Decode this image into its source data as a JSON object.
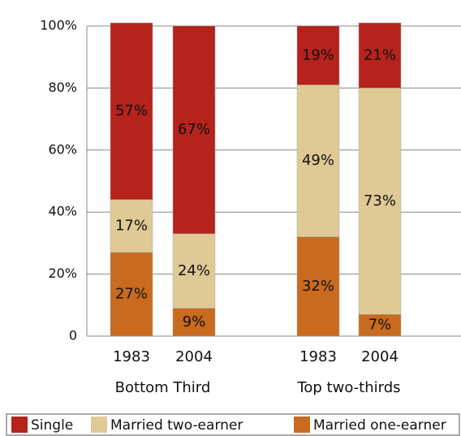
{
  "chart_data": {
    "type": "stacked_bar",
    "categories": [
      "1983",
      "2004",
      "1983",
      "2004"
    ],
    "groups": [
      "Bottom Third",
      "Top two-thirds"
    ],
    "series": [
      {
        "name": "Married one-earner",
        "color": "#c96a1e",
        "values": [
          27,
          9,
          32,
          7
        ],
        "value_labels": [
          "27%",
          "9%",
          "32%",
          "7%"
        ]
      },
      {
        "name": "Married two-earner",
        "color": "#dfc995",
        "values": [
          17,
          24,
          49,
          73
        ],
        "value_labels": [
          "17%",
          "24%",
          "49%",
          "73%"
        ]
      },
      {
        "name": "Single",
        "color": "#b5231c",
        "values": [
          57,
          67,
          19,
          21
        ],
        "value_labels": [
          "57%",
          "67%",
          "19%",
          "21%"
        ]
      }
    ],
    "legend_order": [
      2,
      1,
      0
    ],
    "ylim": [
      0,
      100
    ],
    "yticks": [
      0,
      {
        "value": 20,
        "label": "20%"
      },
      {
        "value": 40,
        "label": "40%"
      },
      {
        "value": 60,
        "label": "60%"
      },
      {
        "value": 80,
        "label": "80%"
      },
      {
        "value": 100,
        "label": "100%"
      }
    ],
    "grid": true
  }
}
